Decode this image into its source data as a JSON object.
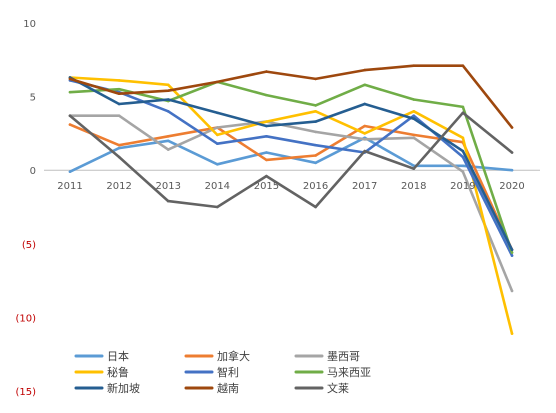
{
  "chart_data": {
    "type": "line",
    "title": "",
    "xlabel": "",
    "ylabel": "",
    "grid": false,
    "legend_position": "bottom",
    "ylim": [
      -15,
      10
    ],
    "y_ticks": [
      {
        "value": 10,
        "label": "10",
        "color": "#595959"
      },
      {
        "value": 5,
        "label": "5",
        "color": "#595959"
      },
      {
        "value": 0,
        "label": "0",
        "color": "#595959"
      },
      {
        "value": -5,
        "label": "(5)",
        "color": "#c00000"
      },
      {
        "value": -10,
        "label": "(10)",
        "color": "#c00000"
      },
      {
        "value": -15,
        "label": "(15)",
        "color": "#c00000"
      }
    ],
    "x": [
      "2011",
      "2012",
      "2013",
      "2014",
      "2015",
      "2016",
      "2017",
      "2018",
      "2019",
      "2020"
    ],
    "series": [
      {
        "name": "日本",
        "color": "#5b9bd5",
        "values": [
          -0.1,
          1.5,
          2.0,
          0.4,
          1.2,
          0.5,
          2.2,
          0.3,
          0.3,
          0.0
        ]
      },
      {
        "name": "加拿大",
        "color": "#ed7d31",
        "values": [
          3.1,
          1.7,
          2.3,
          2.9,
          0.7,
          1.0,
          3.0,
          2.4,
          1.9,
          -5.4
        ]
      },
      {
        "name": "墨西哥",
        "color": "#a5a5a5",
        "values": [
          3.7,
          3.7,
          1.4,
          2.9,
          3.3,
          2.6,
          2.1,
          2.2,
          -0.1,
          -8.2
        ]
      },
      {
        "name": "秘鲁",
        "color": "#ffc000",
        "values": [
          6.3,
          6.1,
          5.8,
          2.4,
          3.3,
          4.0,
          2.5,
          4.0,
          2.2,
          -11.1
        ]
      },
      {
        "name": "智利",
        "color": "#4472c4",
        "values": [
          6.1,
          5.3,
          4.0,
          1.8,
          2.3,
          1.7,
          1.2,
          3.7,
          0.9,
          -5.8
        ]
      },
      {
        "name": "马来西亚",
        "color": "#70ad47",
        "values": [
          5.3,
          5.5,
          4.7,
          6.0,
          5.1,
          4.4,
          5.8,
          4.8,
          4.3,
          -5.6
        ]
      },
      {
        "name": "新加坡",
        "color": "#255e91",
        "values": [
          6.3,
          4.5,
          4.8,
          3.9,
          3.0,
          3.3,
          4.5,
          3.5,
          1.3,
          -5.4
        ]
      },
      {
        "name": "越南",
        "color": "#9e480e",
        "values": [
          6.2,
          5.2,
          5.4,
          6.0,
          6.7,
          6.2,
          6.8,
          7.1,
          7.1,
          2.9
        ]
      },
      {
        "name": "文莱",
        "color": "#636363",
        "values": [
          3.7,
          0.9,
          -2.1,
          -2.5,
          -0.4,
          -2.5,
          1.3,
          0.1,
          3.9,
          1.2
        ]
      }
    ]
  }
}
